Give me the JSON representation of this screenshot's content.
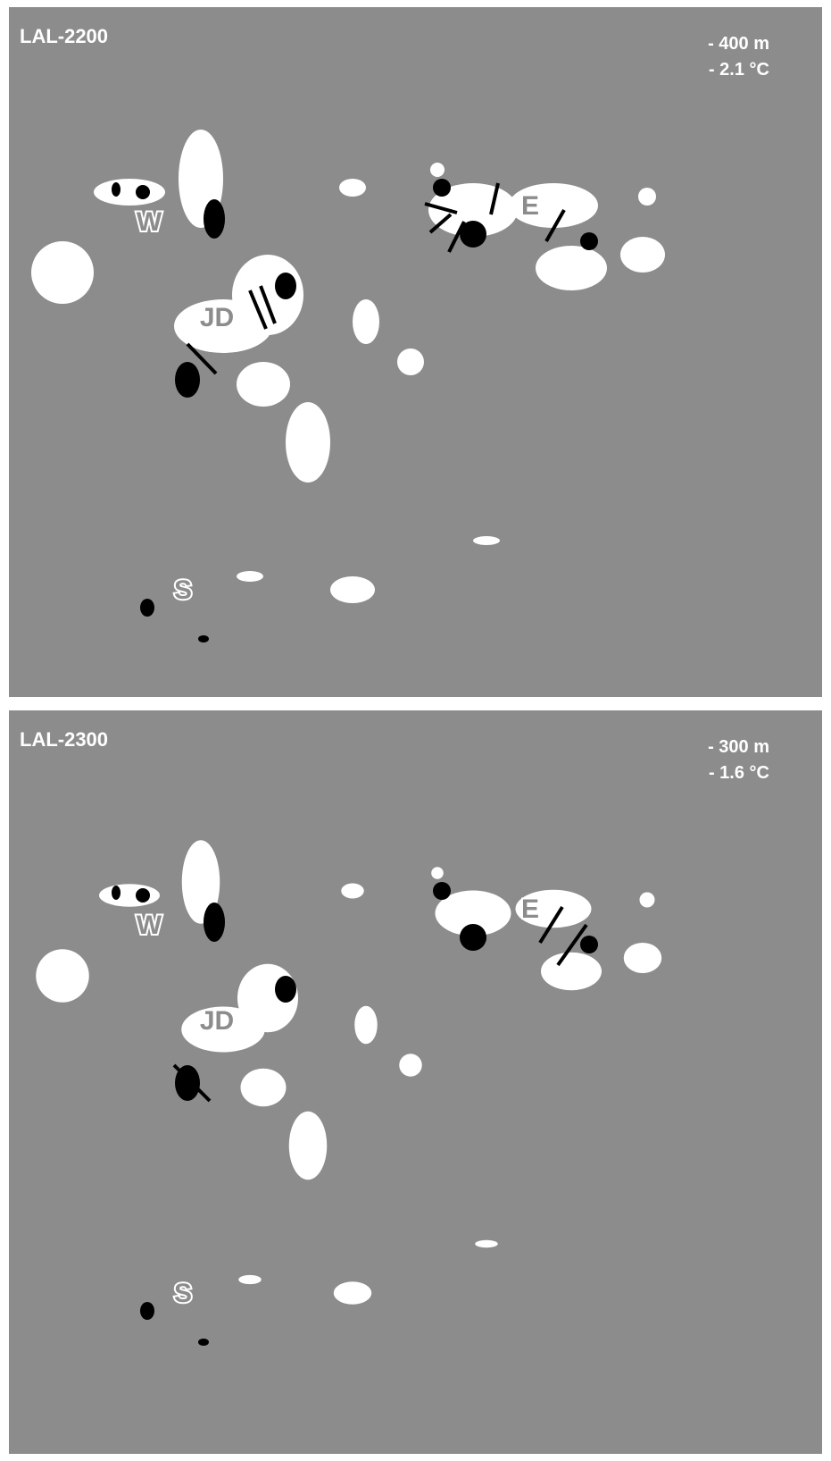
{
  "panels": [
    {
      "title": "LAL-2200",
      "elevation": "- 400 m",
      "temperature": "- 2.1 °C",
      "labels": [
        "W",
        "JD",
        "E",
        "S"
      ]
    },
    {
      "title": "LAL-2300",
      "elevation": "- 300 m",
      "temperature": "- 1.6 °C",
      "labels": [
        "W",
        "JD",
        "E",
        "S"
      ]
    }
  ]
}
